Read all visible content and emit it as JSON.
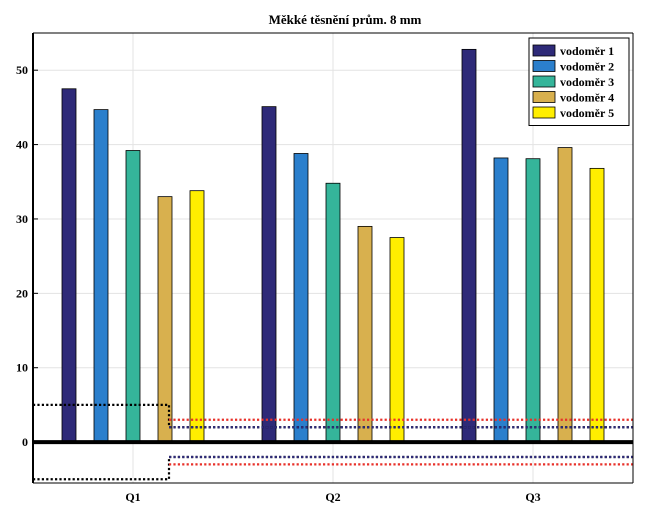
{
  "chart_data": {
    "type": "bar",
    "title": "Měkké těsnění prům. 8 mm",
    "xlabel": "",
    "ylabel": "",
    "categories": [
      "Q1",
      "Q2",
      "Q3"
    ],
    "ylim": [
      -5.5,
      55
    ],
    "yticks": [
      0,
      10,
      20,
      30,
      40,
      50
    ],
    "grid": true,
    "legend_position": "top-right",
    "series": [
      {
        "name": "vodoměr 1",
        "color": "#2e2a78",
        "values": [
          47.5,
          45.1,
          52.8
        ]
      },
      {
        "name": "vodoměr 2",
        "color": "#2b7fcc",
        "values": [
          44.7,
          38.8,
          38.2
        ]
      },
      {
        "name": "vodoměr 3",
        "color": "#35b59a",
        "values": [
          39.2,
          34.8,
          38.1
        ]
      },
      {
        "name": "vodoměr 4",
        "color": "#d8b04e",
        "values": [
          33.0,
          29.0,
          39.6
        ]
      },
      {
        "name": "vodoměr 5",
        "color": "#ffee00",
        "values": [
          33.8,
          27.5,
          36.8
        ]
      }
    ],
    "reference_lines": [
      {
        "name": "limit-black-upper",
        "color": "#000000",
        "points": [
          [
            0.0,
            5
          ],
          [
            0.68,
            5
          ],
          [
            0.68,
            2
          ],
          [
            3.0,
            2
          ]
        ]
      },
      {
        "name": "limit-black-lower",
        "color": "#000000",
        "points": [
          [
            0.0,
            -5
          ],
          [
            0.68,
            -5
          ],
          [
            0.68,
            -2
          ],
          [
            3.0,
            -2
          ]
        ]
      },
      {
        "name": "limit-red-upper",
        "color": "#e8312a",
        "points": [
          [
            0.68,
            3
          ],
          [
            3.0,
            3
          ]
        ]
      },
      {
        "name": "limit-red-lower",
        "color": "#e8312a",
        "points": [
          [
            0.68,
            -3
          ],
          [
            3.0,
            -3
          ]
        ]
      },
      {
        "name": "limit-blue-upper",
        "color": "#2e2a78",
        "points": [
          [
            0.68,
            2
          ],
          [
            3.0,
            2
          ]
        ]
      },
      {
        "name": "limit-blue-lower",
        "color": "#2e2a78",
        "points": [
          [
            0.68,
            -2
          ],
          [
            3.0,
            -2
          ]
        ]
      }
    ]
  }
}
